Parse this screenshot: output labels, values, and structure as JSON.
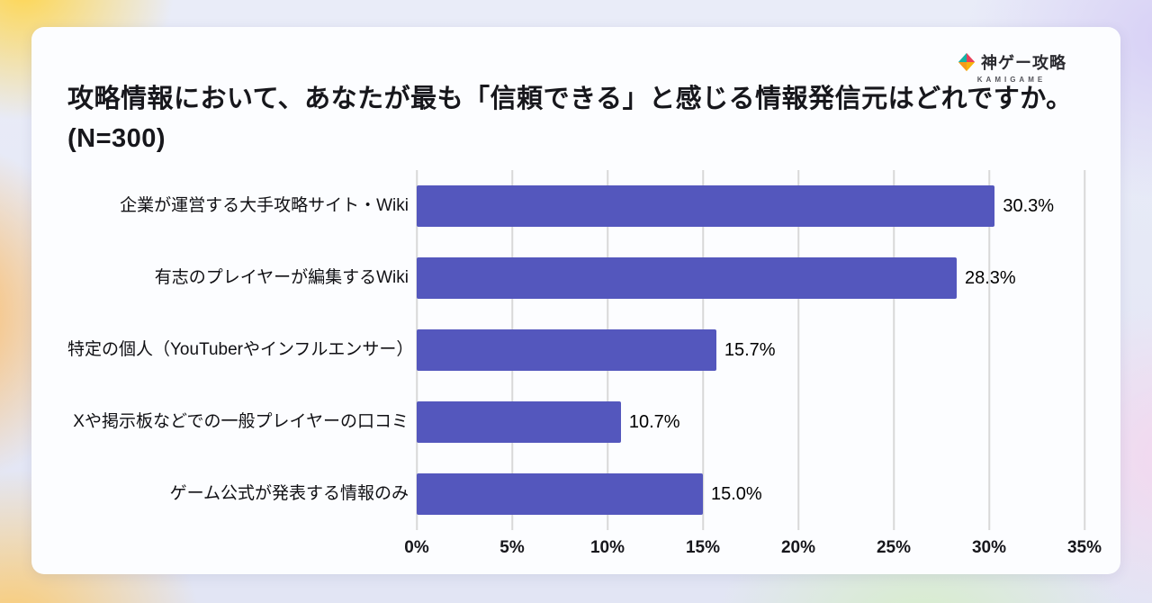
{
  "page": {
    "title": "攻略情報において、あなたが最も「信頼できる」と感じる情報発信元はどれですか。(N=300)"
  },
  "logo": {
    "name": "神ゲー攻略",
    "subtitle": "KAMIGAME"
  },
  "chart_data": {
    "type": "bar",
    "orientation": "horizontal",
    "title": "攻略情報において、あなたが最も「信頼できる」と感じる情報発信元はどれですか。(N=300)",
    "sample_size": "N=300",
    "categories": [
      "企業が運営する大手攻略サイト・Wiki",
      "有志のプレイヤーが編集するWiki",
      "特定の個人（YouTuberやインフルエンサー）",
      "Xや掲示板などでの一般プレイヤーの口コミ",
      "ゲーム公式が発表する情報のみ"
    ],
    "values": [
      30.3,
      28.3,
      15.7,
      10.7,
      15.0
    ],
    "value_labels": [
      "30.3%",
      "28.3%",
      "15.7%",
      "10.7%",
      "15.0%"
    ],
    "x_ticks": [
      "0%",
      "5%",
      "10%",
      "15%",
      "20%",
      "25%",
      "30%",
      "35%"
    ],
    "xlim": [
      0,
      35
    ],
    "bar_color": "#5457bd",
    "grid": true,
    "legend": false
  }
}
